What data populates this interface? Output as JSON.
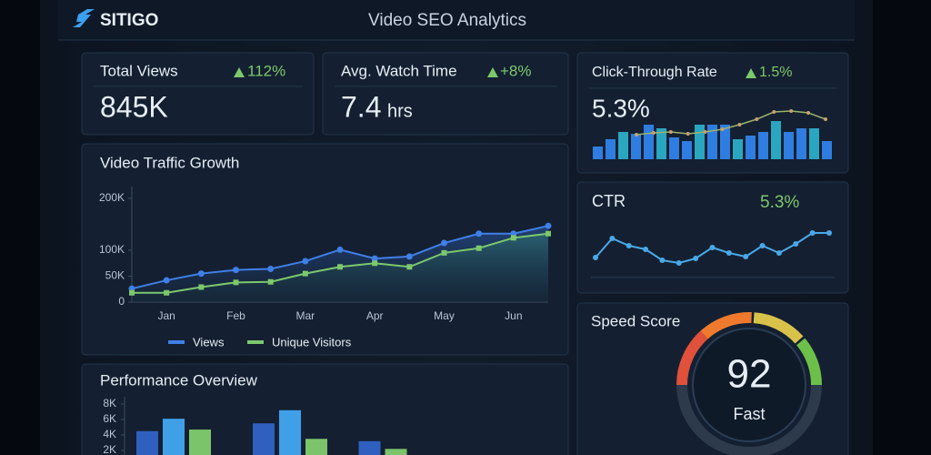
{
  "header": {
    "logo": "SITIGO",
    "title": "Video SEO Analytics"
  },
  "kpis": [
    {
      "label": "Total Views",
      "change": "112%",
      "value": "845K"
    },
    {
      "label": "Avg. Watch Time",
      "change": "+8%",
      "value": "7.4",
      "unit": "hrs"
    }
  ],
  "chart_data": [
    {
      "type": "line",
      "title": "Video Traffic Growth",
      "categories": [
        null,
        "Jan",
        null,
        "Feb",
        null,
        "Mar",
        null,
        "Apr",
        null,
        "May",
        null,
        "Jun",
        null
      ],
      "series": [
        {
          "name": "Views",
          "color": "#3f7fe8",
          "values": [
            26000,
            42000,
            55000,
            62000,
            64000,
            79000,
            101000,
            84000,
            88000,
            114000,
            132000,
            132000,
            147000
          ]
        },
        {
          "name": "Unique Visitors",
          "color": "#7cc86c",
          "values": [
            18000,
            18000,
            29000,
            38000,
            39000,
            55000,
            68000,
            75000,
            68000,
            95000,
            104000,
            124000,
            132000
          ]
        }
      ],
      "ylim": [
        0,
        200000
      ],
      "yticks": [
        0,
        {
          "value": 50000,
          "label": "50K"
        },
        {
          "value": 100000,
          "label": "100K"
        },
        {
          "value": 200000,
          "label": "200K"
        }
      ]
    },
    {
      "type": "bar_line",
      "title": "Click-Through Rate",
      "change": "1.5%",
      "value_label": "5.3%",
      "bars": [
        14,
        22,
        30,
        28,
        38,
        34,
        24,
        20,
        38,
        38,
        38,
        22,
        26,
        30,
        42,
        30,
        34,
        34,
        20
      ],
      "line": [
        27,
        29,
        30,
        28,
        30,
        33,
        38,
        44,
        52,
        53,
        51,
        44
      ],
      "color": "#2f7de0",
      "line_color": "#9cb36a"
    },
    {
      "type": "spark",
      "title": "CTR",
      "value_label": "5.3%",
      "values": [
        22,
        43,
        35,
        31,
        19,
        16,
        21,
        33,
        27,
        23,
        35,
        27,
        37,
        49,
        49
      ],
      "color": "#4aa8e8"
    },
    {
      "type": "grouped_bar",
      "title": "Performance Overview",
      "categories": [
        null,
        null,
        null
      ],
      "series": [
        {
          "color": "#2f5fbf",
          "values": [
            4500,
            5500,
            3200
          ]
        },
        {
          "color": "#3fa0e8",
          "values": [
            6100,
            7200,
            null
          ]
        },
        {
          "color": "#7bc46a",
          "values": [
            4700,
            3500,
            2200
          ]
        }
      ],
      "ylim": [
        0,
        8000
      ],
      "yticks": [
        {
          "value": 2000,
          "label": "2K"
        },
        {
          "value": 4000,
          "label": "4K"
        },
        {
          "value": 6000,
          "label": "6K"
        },
        {
          "value": 8000,
          "label": "8K"
        }
      ]
    },
    {
      "type": "gauge",
      "title": "Speed Score",
      "value": 92,
      "label": "Fast"
    }
  ]
}
